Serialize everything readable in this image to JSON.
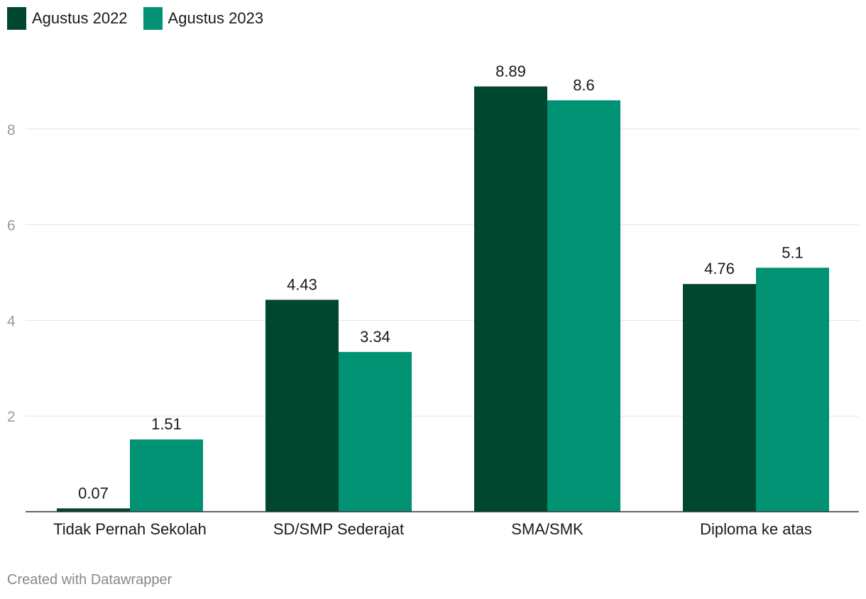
{
  "chart_data": {
    "type": "bar",
    "title": "",
    "xlabel": "",
    "ylabel": "",
    "categories": [
      "Tidak Pernah Sekolah",
      "SD/SMP Sederajat",
      "SMA/SMK",
      "Diploma ke atas"
    ],
    "series": [
      {
        "name": "Agustus 2022",
        "color": "#01472f",
        "values": [
          0.07,
          4.43,
          8.89,
          4.76
        ],
        "labels": [
          "0.07",
          "4.43",
          "8.89",
          "4.76"
        ]
      },
      {
        "name": "Agustus 2023",
        "color": "#019173",
        "values": [
          1.51,
          3.34,
          8.6,
          5.1
        ],
        "labels": [
          "1.51",
          "3.34",
          "8.6",
          "5.1"
        ]
      }
    ],
    "yticks": [
      2,
      4,
      6,
      8
    ],
    "yticks_labels": [
      "2",
      "4",
      "6",
      "8"
    ],
    "ylim": [
      0,
      9.5
    ],
    "grid": true,
    "legend": "top-left"
  },
  "footer": {
    "credit": "Created with Datawrapper"
  }
}
